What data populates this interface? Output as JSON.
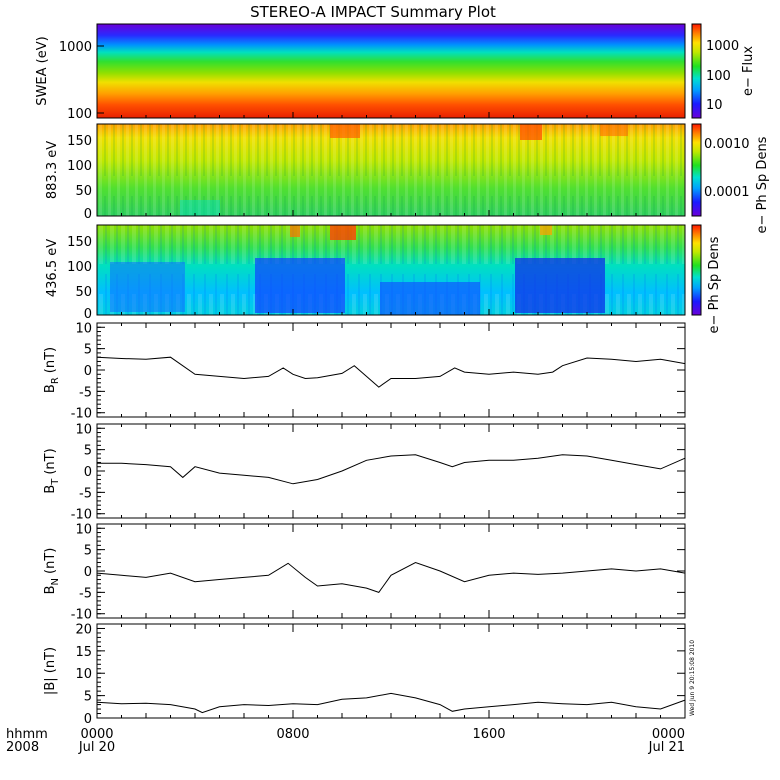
{
  "chart_data": [
    {
      "type": "heatmap",
      "title": "STEREO-A IMPACT Summary Plot",
      "ylabel": "SWEA (eV)",
      "yscale": "log",
      "ylim": [
        100,
        2000
      ],
      "yticks": [
        "1000",
        "100"
      ],
      "colorbar": {
        "label": "e− Flux",
        "ticks": [
          "1000",
          "100",
          "10"
        ],
        "scale": "log"
      }
    },
    {
      "type": "heatmap",
      "ylabel": "883.3 eV",
      "ylim": [
        0,
        180
      ],
      "yticks": [
        "150",
        "100",
        "50",
        "0"
      ],
      "colorbar": {
        "label": "e− Ph Sp Dens",
        "ticks": [
          "0.0010",
          "0.0001"
        ],
        "scale": "log"
      }
    },
    {
      "type": "heatmap",
      "ylabel": "436.5 eV",
      "ylim": [
        0,
        180
      ],
      "yticks": [
        "150",
        "100",
        "50",
        "0"
      ],
      "colorbar": {
        "label": "e− Ph Sp Dens",
        "ticks": [],
        "scale": "log"
      }
    },
    {
      "type": "line",
      "ylabel": "B_R (nT)",
      "ylabel_main": "B",
      "ylabel_sub": "R",
      "ylabel_unit": "(nT)",
      "ylim": [
        -11,
        11
      ],
      "yticks": [
        10,
        5,
        0,
        -5,
        -10
      ],
      "x_hours": [
        0,
        1,
        2,
        3,
        4,
        5,
        6,
        7,
        7.6,
        8,
        8.5,
        9,
        10,
        10.5,
        11,
        11.5,
        12,
        13,
        14,
        14.6,
        15,
        16,
        17,
        18,
        18.6,
        19,
        20,
        21,
        22,
        23,
        24
      ],
      "values": [
        3,
        2.7,
        2.5,
        3,
        -1,
        -1.5,
        -2,
        -1.5,
        0.5,
        -1,
        -2,
        -1.8,
        -0.8,
        1,
        -1.5,
        -4,
        -2,
        -2,
        -1.5,
        0.5,
        -0.5,
        -1,
        -0.5,
        -1,
        -0.5,
        1,
        2.8,
        2.5,
        2,
        2.5,
        1.5
      ]
    },
    {
      "type": "line",
      "ylabel": "B_T (nT)",
      "ylabel_main": "B",
      "ylabel_sub": "T",
      "ylabel_unit": "(nT)",
      "ylim": [
        -11,
        11
      ],
      "yticks": [
        10,
        5,
        0,
        -5,
        -10
      ],
      "x_hours": [
        0,
        1,
        2,
        3,
        3.5,
        4,
        5,
        6,
        7,
        8,
        9,
        10,
        11,
        12,
        13,
        14,
        14.5,
        15,
        16,
        17,
        18,
        19,
        20,
        21,
        22,
        23,
        24
      ],
      "values": [
        1.8,
        1.8,
        1.5,
        1,
        -1.5,
        1,
        -0.5,
        -1,
        -1.5,
        -3,
        -2,
        0,
        2.5,
        3.5,
        3.8,
        2,
        1,
        2,
        2.5,
        2.5,
        3,
        3.8,
        3.5,
        2.5,
        1.5,
        0.5,
        3
      ]
    },
    {
      "type": "line",
      "ylabel": "B_N (nT)",
      "ylabel_main": "B",
      "ylabel_sub": "N",
      "ylabel_unit": "(nT)",
      "ylim": [
        -11,
        11
      ],
      "yticks": [
        10,
        5,
        0,
        -5,
        -10
      ],
      "x_hours": [
        0,
        1,
        2,
        3,
        4,
        5,
        6,
        7,
        7.8,
        8.5,
        9,
        10,
        11,
        11.5,
        12,
        13,
        14,
        15,
        16,
        17,
        18,
        19,
        20,
        21,
        22,
        23,
        24
      ],
      "values": [
        -0.5,
        -1,
        -1.5,
        -0.5,
        -2.5,
        -2,
        -1.5,
        -1,
        1.8,
        -1.5,
        -3.5,
        -3,
        -4,
        -5,
        -1,
        2,
        0,
        -2.5,
        -1,
        -0.5,
        -0.8,
        -0.5,
        0,
        0.5,
        0,
        0.5,
        -0.5
      ]
    },
    {
      "type": "line",
      "ylabel": "|B| (nT)",
      "ylim": [
        0,
        21
      ],
      "yticks": [
        20,
        15,
        10,
        5,
        0
      ],
      "x_hours": [
        0,
        1,
        2,
        3,
        4,
        4.3,
        5,
        6,
        7,
        8,
        9,
        10,
        11,
        12,
        13,
        14,
        14.5,
        15,
        16,
        17,
        18,
        19,
        20,
        21,
        22,
        23,
        24
      ],
      "values": [
        3.5,
        3.2,
        3.3,
        3,
        2,
        1.2,
        2.5,
        3,
        2.8,
        3.2,
        3,
        4.2,
        4.5,
        5.5,
        4.5,
        3,
        1.5,
        2,
        2.5,
        3,
        3.5,
        3.2,
        3,
        3.5,
        2.5,
        2,
        4
      ]
    }
  ],
  "x_axis": {
    "row_label_1": "hhmm",
    "row_label_2": "2008",
    "ticks": [
      {
        "hhmm": "0000",
        "date": "Jul 20"
      },
      {
        "hhmm": "0800",
        "date": ""
      },
      {
        "hhmm": "1600",
        "date": ""
      },
      {
        "hhmm": "0000",
        "date": "Jul 21"
      }
    ]
  },
  "timestamp": "Wed Jun 9 20:15:08 2010",
  "colors": {
    "frame": "#000000",
    "background": "#ffffff"
  }
}
